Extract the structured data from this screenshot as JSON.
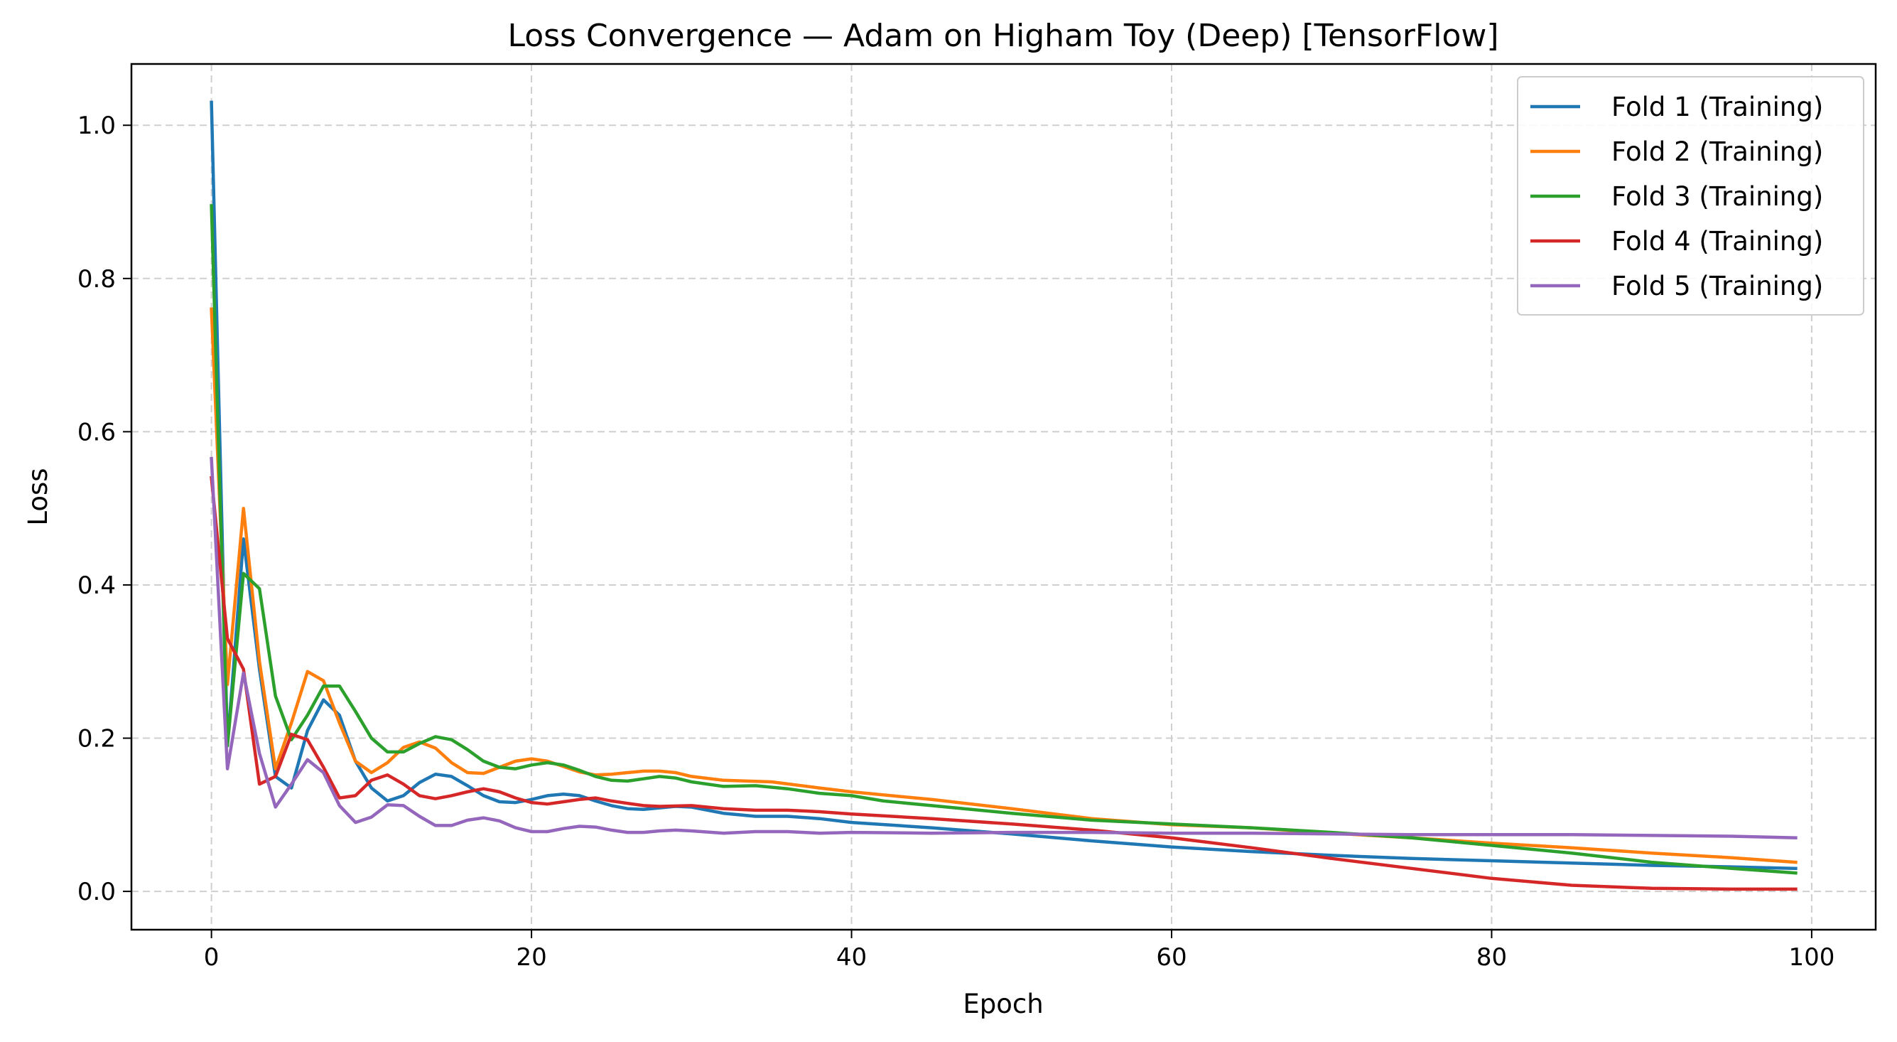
{
  "chart_data": {
    "type": "line",
    "title": "Loss Convergence — Adam on Higham Toy (Deep) [TensorFlow]",
    "xlabel": "Epoch",
    "ylabel": "Loss",
    "xlim": [
      -5,
      104
    ],
    "ylim": [
      -0.05,
      1.08
    ],
    "xticks": [
      0,
      20,
      40,
      60,
      80,
      100
    ],
    "yticks": [
      0.0,
      0.2,
      0.4,
      0.6,
      0.8,
      1.0
    ],
    "xtick_labels": [
      "0",
      "20",
      "40",
      "60",
      "80",
      "100"
    ],
    "ytick_labels": [
      "0.0",
      "0.2",
      "0.4",
      "0.6",
      "0.8",
      "1.0"
    ],
    "grid": true,
    "legend_position": "top-right",
    "series": [
      {
        "name": "Fold 1 (Training)",
        "color": "#1f77b4",
        "points": [
          [
            0,
            1.03
          ],
          [
            1,
            0.19
          ],
          [
            2,
            0.46
          ],
          [
            3,
            0.29
          ],
          [
            4,
            0.15
          ],
          [
            5,
            0.135
          ],
          [
            6,
            0.21
          ],
          [
            7,
            0.25
          ],
          [
            8,
            0.23
          ],
          [
            9,
            0.17
          ],
          [
            10,
            0.135
          ],
          [
            11,
            0.118
          ],
          [
            12,
            0.125
          ],
          [
            13,
            0.142
          ],
          [
            14,
            0.153
          ],
          [
            15,
            0.15
          ],
          [
            16,
            0.138
          ],
          [
            17,
            0.125
          ],
          [
            18,
            0.117
          ],
          [
            19,
            0.116
          ],
          [
            20,
            0.12
          ],
          [
            21,
            0.125
          ],
          [
            22,
            0.127
          ],
          [
            23,
            0.125
          ],
          [
            24,
            0.118
          ],
          [
            25,
            0.112
          ],
          [
            26,
            0.108
          ],
          [
            27,
            0.107
          ],
          [
            28,
            0.109
          ],
          [
            29,
            0.111
          ],
          [
            30,
            0.11
          ],
          [
            32,
            0.102
          ],
          [
            34,
            0.098
          ],
          [
            36,
            0.098
          ],
          [
            38,
            0.095
          ],
          [
            40,
            0.09
          ],
          [
            45,
            0.083
          ],
          [
            50,
            0.075
          ],
          [
            55,
            0.066
          ],
          [
            60,
            0.058
          ],
          [
            65,
            0.052
          ],
          [
            70,
            0.047
          ],
          [
            75,
            0.043
          ],
          [
            80,
            0.04
          ],
          [
            85,
            0.037
          ],
          [
            90,
            0.034
          ],
          [
            95,
            0.032
          ],
          [
            99,
            0.03
          ]
        ]
      },
      {
        "name": "Fold 2 (Training)",
        "color": "#ff7f0e",
        "points": [
          [
            0,
            0.76
          ],
          [
            1,
            0.27
          ],
          [
            2,
            0.5
          ],
          [
            3,
            0.3
          ],
          [
            4,
            0.16
          ],
          [
            5,
            0.22
          ],
          [
            6,
            0.287
          ],
          [
            7,
            0.275
          ],
          [
            8,
            0.22
          ],
          [
            9,
            0.17
          ],
          [
            10,
            0.155
          ],
          [
            11,
            0.168
          ],
          [
            12,
            0.188
          ],
          [
            13,
            0.195
          ],
          [
            14,
            0.187
          ],
          [
            15,
            0.168
          ],
          [
            16,
            0.155
          ],
          [
            17,
            0.154
          ],
          [
            18,
            0.162
          ],
          [
            19,
            0.17
          ],
          [
            20,
            0.173
          ],
          [
            21,
            0.17
          ],
          [
            22,
            0.163
          ],
          [
            23,
            0.156
          ],
          [
            24,
            0.152
          ],
          [
            25,
            0.153
          ],
          [
            26,
            0.155
          ],
          [
            27,
            0.157
          ],
          [
            28,
            0.157
          ],
          [
            29,
            0.155
          ],
          [
            30,
            0.15
          ],
          [
            32,
            0.145
          ],
          [
            35,
            0.143
          ],
          [
            38,
            0.135
          ],
          [
            40,
            0.13
          ],
          [
            45,
            0.12
          ],
          [
            50,
            0.108
          ],
          [
            55,
            0.095
          ],
          [
            60,
            0.087
          ],
          [
            65,
            0.083
          ],
          [
            70,
            0.076
          ],
          [
            75,
            0.07
          ],
          [
            80,
            0.063
          ],
          [
            85,
            0.057
          ],
          [
            90,
            0.05
          ],
          [
            95,
            0.044
          ],
          [
            99,
            0.038
          ]
        ]
      },
      {
        "name": "Fold 3 (Training)",
        "color": "#2ca02c",
        "points": [
          [
            0,
            0.895
          ],
          [
            1,
            0.19
          ],
          [
            2,
            0.415
          ],
          [
            3,
            0.395
          ],
          [
            4,
            0.255
          ],
          [
            5,
            0.198
          ],
          [
            6,
            0.23
          ],
          [
            7,
            0.268
          ],
          [
            8,
            0.268
          ],
          [
            9,
            0.235
          ],
          [
            10,
            0.2
          ],
          [
            11,
            0.182
          ],
          [
            12,
            0.182
          ],
          [
            13,
            0.193
          ],
          [
            14,
            0.202
          ],
          [
            15,
            0.198
          ],
          [
            16,
            0.185
          ],
          [
            17,
            0.17
          ],
          [
            18,
            0.162
          ],
          [
            19,
            0.16
          ],
          [
            20,
            0.165
          ],
          [
            21,
            0.168
          ],
          [
            22,
            0.165
          ],
          [
            23,
            0.158
          ],
          [
            24,
            0.15
          ],
          [
            25,
            0.145
          ],
          [
            26,
            0.144
          ],
          [
            27,
            0.147
          ],
          [
            28,
            0.15
          ],
          [
            29,
            0.148
          ],
          [
            30,
            0.143
          ],
          [
            32,
            0.137
          ],
          [
            34,
            0.138
          ],
          [
            36,
            0.134
          ],
          [
            38,
            0.128
          ],
          [
            40,
            0.125
          ],
          [
            42,
            0.118
          ],
          [
            45,
            0.112
          ],
          [
            50,
            0.102
          ],
          [
            55,
            0.093
          ],
          [
            60,
            0.088
          ],
          [
            65,
            0.083
          ],
          [
            70,
            0.077
          ],
          [
            75,
            0.07
          ],
          [
            80,
            0.06
          ],
          [
            85,
            0.05
          ],
          [
            90,
            0.038
          ],
          [
            95,
            0.03
          ],
          [
            99,
            0.024
          ]
        ]
      },
      {
        "name": "Fold 4 (Training)",
        "color": "#d62728",
        "points": [
          [
            0,
            0.54
          ],
          [
            1,
            0.33
          ],
          [
            2,
            0.29
          ],
          [
            3,
            0.14
          ],
          [
            4,
            0.15
          ],
          [
            5,
            0.205
          ],
          [
            6,
            0.198
          ],
          [
            7,
            0.162
          ],
          [
            8,
            0.122
          ],
          [
            9,
            0.125
          ],
          [
            10,
            0.145
          ],
          [
            11,
            0.152
          ],
          [
            12,
            0.14
          ],
          [
            13,
            0.125
          ],
          [
            14,
            0.121
          ],
          [
            15,
            0.125
          ],
          [
            16,
            0.13
          ],
          [
            17,
            0.134
          ],
          [
            18,
            0.13
          ],
          [
            19,
            0.122
          ],
          [
            20,
            0.116
          ],
          [
            21,
            0.114
          ],
          [
            22,
            0.117
          ],
          [
            23,
            0.12
          ],
          [
            24,
            0.122
          ],
          [
            25,
            0.118
          ],
          [
            26,
            0.115
          ],
          [
            27,
            0.112
          ],
          [
            28,
            0.111
          ],
          [
            30,
            0.112
          ],
          [
            32,
            0.108
          ],
          [
            34,
            0.106
          ],
          [
            36,
            0.106
          ],
          [
            38,
            0.104
          ],
          [
            40,
            0.101
          ],
          [
            45,
            0.095
          ],
          [
            50,
            0.088
          ],
          [
            55,
            0.08
          ],
          [
            60,
            0.07
          ],
          [
            65,
            0.057
          ],
          [
            70,
            0.043
          ],
          [
            75,
            0.03
          ],
          [
            80,
            0.017
          ],
          [
            85,
            0.008
          ],
          [
            90,
            0.004
          ],
          [
            95,
            0.003
          ],
          [
            99,
            0.003
          ]
        ]
      },
      {
        "name": "Fold 5 (Training)",
        "color": "#9467bd",
        "points": [
          [
            0,
            0.565
          ],
          [
            1,
            0.16
          ],
          [
            2,
            0.285
          ],
          [
            3,
            0.18
          ],
          [
            4,
            0.11
          ],
          [
            5,
            0.14
          ],
          [
            6,
            0.172
          ],
          [
            7,
            0.155
          ],
          [
            8,
            0.112
          ],
          [
            9,
            0.09
          ],
          [
            10,
            0.097
          ],
          [
            11,
            0.113
          ],
          [
            12,
            0.112
          ],
          [
            13,
            0.098
          ],
          [
            14,
            0.086
          ],
          [
            15,
            0.086
          ],
          [
            16,
            0.093
          ],
          [
            17,
            0.096
          ],
          [
            18,
            0.092
          ],
          [
            19,
            0.083
          ],
          [
            20,
            0.078
          ],
          [
            21,
            0.078
          ],
          [
            22,
            0.082
          ],
          [
            23,
            0.085
          ],
          [
            24,
            0.084
          ],
          [
            25,
            0.08
          ],
          [
            26,
            0.077
          ],
          [
            27,
            0.077
          ],
          [
            28,
            0.079
          ],
          [
            29,
            0.08
          ],
          [
            30,
            0.079
          ],
          [
            32,
            0.076
          ],
          [
            34,
            0.078
          ],
          [
            36,
            0.078
          ],
          [
            38,
            0.076
          ],
          [
            40,
            0.077
          ],
          [
            45,
            0.076
          ],
          [
            50,
            0.077
          ],
          [
            55,
            0.077
          ],
          [
            60,
            0.076
          ],
          [
            65,
            0.076
          ],
          [
            70,
            0.075
          ],
          [
            75,
            0.074
          ],
          [
            80,
            0.074
          ],
          [
            85,
            0.074
          ],
          [
            90,
            0.073
          ],
          [
            95,
            0.072
          ],
          [
            99,
            0.07
          ]
        ]
      }
    ]
  }
}
